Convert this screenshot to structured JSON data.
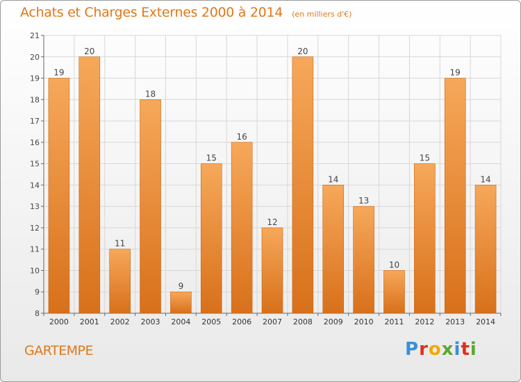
{
  "title": "Achats et Charges Externes 2000 à 2014",
  "subtitle": "(en milliers d'€)",
  "commune": "GARTEMPE",
  "logo": {
    "letters": [
      "P",
      "r",
      "o",
      "x",
      "i",
      "t",
      "i"
    ],
    "colors": [
      "#3a8fd6",
      "#e0301e",
      "#f2a900",
      "#5aa832",
      "#3a8fd6",
      "#e0301e",
      "#5aa832"
    ]
  },
  "colors": {
    "bar": "#f08a2c",
    "bar_light": "#f6a85a",
    "bar_dark": "#d8701a",
    "text": "#e07818"
  },
  "chart_data": {
    "type": "bar",
    "categories": [
      "2000",
      "2001",
      "2002",
      "2003",
      "2004",
      "2005",
      "2006",
      "2007",
      "2008",
      "2009",
      "2010",
      "2011",
      "2012",
      "2013",
      "2014"
    ],
    "values": [
      19,
      20,
      11,
      18,
      9,
      15,
      16,
      12,
      20,
      14,
      13,
      10,
      15,
      19,
      14
    ],
    "ylim": [
      8,
      21
    ],
    "yticks": [
      8,
      9,
      10,
      11,
      12,
      13,
      14,
      15,
      16,
      17,
      18,
      19,
      20,
      21
    ],
    "grid": true,
    "xlabel": "",
    "ylabel": ""
  }
}
